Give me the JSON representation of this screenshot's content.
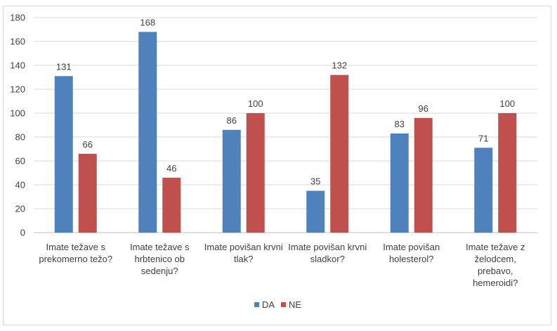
{
  "chart_data": {
    "type": "bar",
    "categories": [
      [
        "Imate težave s",
        "prekomerno težo?"
      ],
      [
        "Imate težave s",
        "hrbtenico ob",
        "sedenju?"
      ],
      [
        "Imate povišan krvni",
        "tlak?"
      ],
      [
        "Imate povišan krvni",
        "sladkor?"
      ],
      [
        "Imate povišan",
        "holesterol?"
      ],
      [
        "Imate težave z",
        "želodcem,",
        "prebavo,",
        "hemeroidi?"
      ]
    ],
    "series": [
      {
        "name": "DA",
        "color": "#4f81bd",
        "values": [
          131,
          168,
          86,
          35,
          83,
          71
        ]
      },
      {
        "name": "NE",
        "color": "#c0504d",
        "values": [
          66,
          46,
          100,
          132,
          96,
          100
        ]
      }
    ],
    "ylim": [
      0,
      180
    ],
    "yticks": [
      0,
      20,
      40,
      60,
      80,
      100,
      120,
      140,
      160,
      180
    ],
    "grid": true,
    "legend": "bottom",
    "title": "",
    "xlabel": "",
    "ylabel": ""
  }
}
